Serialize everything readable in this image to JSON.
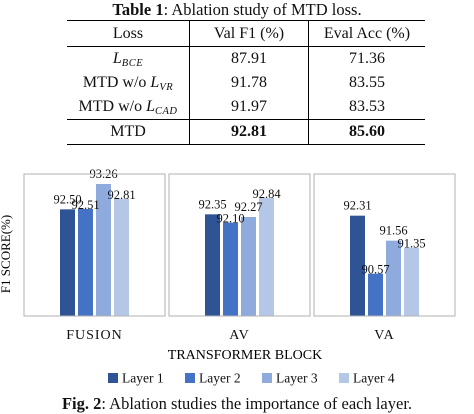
{
  "table": {
    "caption_prefix": "Table 1",
    "caption_rest": ": Ablation study of MTD loss.",
    "headers": [
      "Loss",
      "Val F1 (%)",
      "Eval Acc (%)"
    ],
    "rows": [
      {
        "base": "",
        "script": "L",
        "sub": "BCE",
        "f1": "87.91",
        "acc": "71.36"
      },
      {
        "base": "MTD w/o ",
        "script": "L",
        "sub": "VR",
        "f1": "91.78",
        "acc": "83.55"
      },
      {
        "base": "MTD w/o ",
        "script": "L",
        "sub": "CAD",
        "f1": "91.97",
        "acc": "83.53"
      },
      {
        "base": "MTD",
        "script": "",
        "sub": "",
        "f1": "92.81",
        "acc": "85.60"
      }
    ]
  },
  "chart_data": {
    "type": "bar",
    "categories": [
      "FUSION",
      "AV",
      "VA"
    ],
    "series": [
      {
        "name": "Layer 1",
        "values": [
          92.5,
          92.35,
          92.31
        ]
      },
      {
        "name": "Layer 2",
        "values": [
          92.51,
          92.1,
          90.57
        ]
      },
      {
        "name": "Layer 3",
        "values": [
          93.26,
          92.27,
          91.56
        ]
      },
      {
        "name": "Layer 4",
        "values": [
          92.81,
          92.84,
          91.35
        ]
      }
    ],
    "value_labels": [
      [
        "92.50",
        "92.51",
        "93.26",
        "92.81"
      ],
      [
        "92.35",
        "92.10",
        "92.27",
        "92.84"
      ],
      [
        "92.31",
        "90.57",
        "91.56",
        "91.35"
      ]
    ],
    "colors": [
      "#2f5496",
      "#4472c4",
      "#8faadc",
      "#b4c7e7"
    ],
    "xlabel": "TRANSFORMER BLOCK",
    "ylabel": "F1 SCORE(%)",
    "ylim": [
      89.3,
      93.8
    ],
    "grid": false,
    "legend": "bottom"
  },
  "figure": {
    "caption_prefix": "Fig. 2",
    "caption_rest": ": Ablation studies the importance of each layer."
  }
}
